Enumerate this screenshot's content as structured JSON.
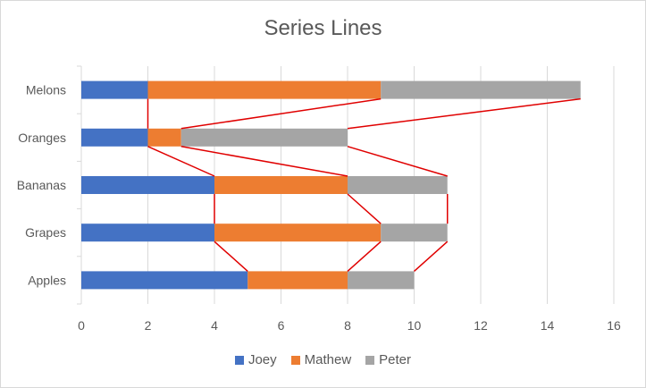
{
  "chart_data": {
    "type": "bar",
    "orientation": "horizontal",
    "stacked": true,
    "title": "Series Lines",
    "categories": [
      "Apples",
      "Grapes",
      "Bananas",
      "Oranges",
      "Melons"
    ],
    "series": [
      {
        "name": "Joey",
        "values": [
          5,
          4,
          4,
          2,
          2
        ],
        "color": "#4472c4"
      },
      {
        "name": "Mathew",
        "values": [
          3,
          5,
          4,
          1,
          7
        ],
        "color": "#ed7d31"
      },
      {
        "name": "Peter",
        "values": [
          2,
          2,
          3,
          5,
          6
        ],
        "color": "#a5a5a5"
      }
    ],
    "xlim": [
      0,
      16
    ],
    "xticks": [
      0,
      2,
      4,
      6,
      8,
      10,
      12,
      14,
      16
    ],
    "gridlines": "vertical",
    "series_lines": true,
    "series_line_color": "#e00000",
    "legend_position": "bottom",
    "xlabel": "",
    "ylabel": ""
  }
}
